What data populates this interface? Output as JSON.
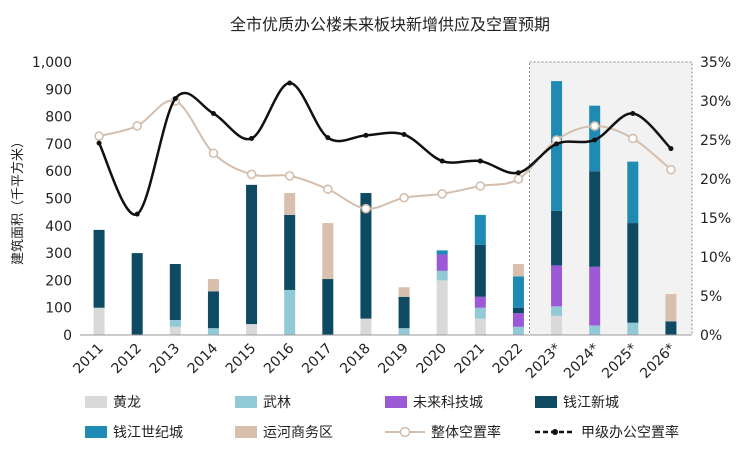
{
  "chart_data": {
    "type": "bar",
    "title": "全市优质办公楼未来板块新增供应及空置预期",
    "ylabel": "建筑面积（千平方米）",
    "ylim": [
      0,
      1000
    ],
    "y2lim": [
      0,
      35
    ],
    "y_ticks": [
      "0",
      "100",
      "200",
      "300",
      "400",
      "500",
      "600",
      "700",
      "800",
      "900",
      "1,000"
    ],
    "y2_ticks": [
      "0%",
      "5%",
      "10%",
      "15%",
      "20%",
      "25%",
      "30%",
      "35%"
    ],
    "categories": [
      "2011",
      "2012",
      "2013",
      "2014",
      "2015",
      "2016",
      "2017",
      "2018",
      "2019",
      "2020",
      "2021",
      "2022",
      "2023*",
      "2024*",
      "2025*",
      "2026*"
    ],
    "series": [
      {
        "name": "黄龙",
        "color": "#d9d9d9",
        "values": [
          100,
          0,
          30,
          0,
          40,
          0,
          0,
          60,
          0,
          200,
          60,
          0,
          70,
          0,
          0,
          0
        ]
      },
      {
        "name": "武林",
        "color": "#92c9d6",
        "values": [
          0,
          0,
          25,
          25,
          0,
          165,
          0,
          0,
          25,
          35,
          40,
          30,
          35,
          35,
          45,
          0
        ]
      },
      {
        "name": "未来科技城",
        "color": "#9b59d6",
        "values": [
          0,
          0,
          0,
          0,
          0,
          0,
          0,
          0,
          0,
          60,
          40,
          50,
          150,
          215,
          0,
          0
        ]
      },
      {
        "name": "钱江新城",
        "color": "#0e4b63",
        "values": [
          285,
          300,
          205,
          135,
          510,
          275,
          205,
          460,
          115,
          0,
          190,
          20,
          200,
          350,
          365,
          50
        ]
      },
      {
        "name": "钱江世纪城",
        "color": "#1f8ab3",
        "values": [
          0,
          0,
          0,
          0,
          0,
          0,
          0,
          0,
          0,
          15,
          110,
          115,
          475,
          240,
          225,
          0
        ]
      },
      {
        "name": "运河商务区",
        "color": "#d9bfae",
        "values": [
          0,
          0,
          0,
          45,
          0,
          80,
          205,
          0,
          35,
          0,
          0,
          45,
          0,
          0,
          0,
          100
        ]
      }
    ],
    "lines": [
      {
        "name": "整体空置率",
        "color": "#d4bfae",
        "axis": "right",
        "values": [
          25.5,
          26.8,
          30,
          23.3,
          20.6,
          20.4,
          18.7,
          16.2,
          17.6,
          18.1,
          19.1,
          20,
          25,
          26.8,
          25.2,
          21.2
        ]
      },
      {
        "name": "甲级办公空置率",
        "color": "#111111",
        "axis": "right",
        "values": [
          24.6,
          15.5,
          30.3,
          28.4,
          25.2,
          32.3,
          25.3,
          25.6,
          25.7,
          22.3,
          22.3,
          20.8,
          24.5,
          25,
          28.4,
          23.9
        ]
      }
    ],
    "forecast_box": {
      "from": "2023*",
      "to": "2026*"
    },
    "legend_position": "bottom"
  }
}
